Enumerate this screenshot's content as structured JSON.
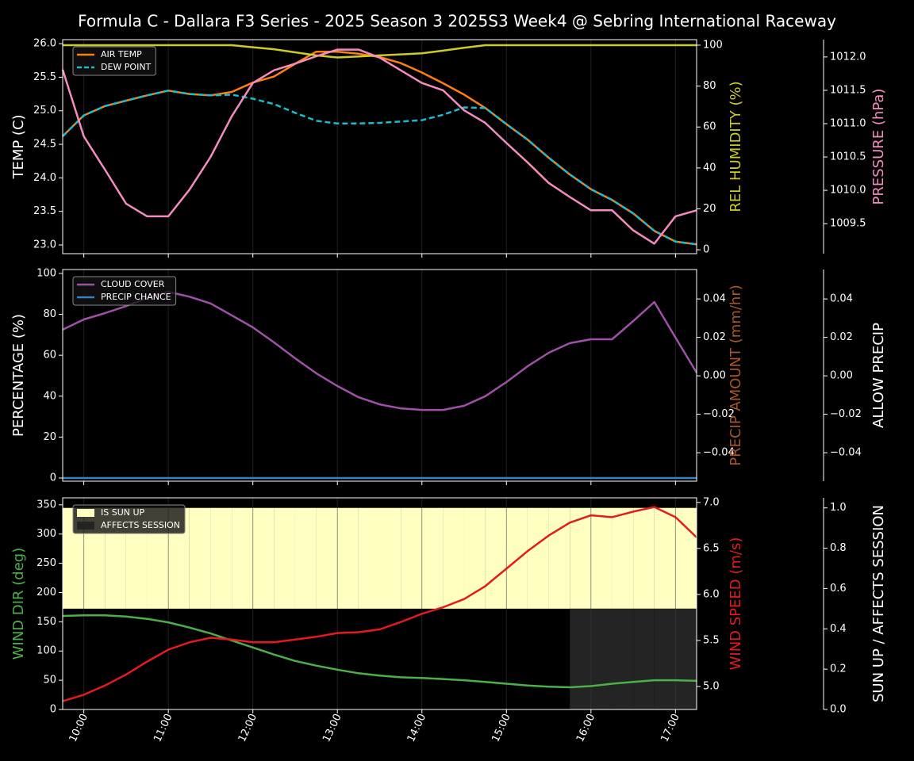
{
  "title": "Formula C -  Dallara F3 Series - 2025 Season 3 2025S3 Week4 @ Sebring International Raceway",
  "chart_data": [
    {
      "type": "line",
      "ylabel": "TEMP (C)",
      "y2label": "REL HUMIDITY (%)",
      "y2label_color": "#cccc22",
      "y3label": "PRESSURE (hPa)",
      "y3label_color": "#f48cc0",
      "ylim": [
        22.87,
        26.06
      ],
      "yticks": [
        {
          "value": 23,
          "label": "23.0"
        },
        23.5,
        {
          "value": 24,
          "label": "24.0"
        },
        24.5,
        {
          "value": 25,
          "label": "25.0"
        },
        25.5,
        {
          "value": 26,
          "label": "26.0"
        }
      ],
      "y2lim": [
        -1.9,
        102.7
      ],
      "y2ticks": [
        0,
        20,
        40,
        60,
        80,
        100
      ],
      "y3lim": [
        1009.05,
        1012.26
      ],
      "y3ticks": [
        1009.5,
        {
          "value": 1010,
          "label": "1010.0"
        },
        1010.5,
        {
          "value": 1011,
          "label": "1011.0"
        },
        1011.5,
        {
          "value": 1012,
          "label": "1012.0"
        }
      ],
      "legend": true,
      "series": [
        {
          "name": "AIR TEMP",
          "color": "#ff7f0e",
          "axis": "y",
          "values": [
            24.62,
            24.93,
            25.07,
            25.15,
            25.23,
            25.3,
            25.25,
            25.23,
            25.28,
            25.42,
            25.51,
            25.7,
            25.88,
            25.88,
            25.85,
            25.8,
            25.71,
            25.57,
            25.41,
            25.24,
            25.04,
            24.8,
            24.57,
            24.3,
            24.05,
            23.83,
            23.67,
            23.47,
            23.21,
            23.05,
            23.01
          ]
        },
        {
          "name": "DEW POINT",
          "color": "#17becf",
          "axis": "y",
          "dash": true,
          "values": [
            24.62,
            24.93,
            25.07,
            25.15,
            25.23,
            25.3,
            25.25,
            25.23,
            25.24,
            25.18,
            25.1,
            24.97,
            24.85,
            24.81,
            24.81,
            24.82,
            24.84,
            24.86,
            24.94,
            25.05,
            25.04,
            24.8,
            24.57,
            24.3,
            24.05,
            23.83,
            23.67,
            23.47,
            23.21,
            23.05,
            23.01
          ]
        },
        {
          "color": "#cccc22",
          "axis": "y2",
          "in_legend": false,
          "values": [
            100,
            100,
            100,
            100,
            100,
            100,
            100,
            100,
            100,
            99,
            98,
            96.5,
            95,
            94,
            94.5,
            95,
            95.5,
            96,
            97.3,
            98.7,
            100,
            100,
            100,
            100,
            100,
            100,
            100,
            100,
            100,
            100,
            100
          ]
        },
        {
          "color": "#f48cc0",
          "axis": "y3",
          "in_legend": false,
          "values": [
            1011.81,
            1010.81,
            1010.31,
            1009.8,
            1009.61,
            1009.61,
            1010.01,
            1010.5,
            1011.11,
            1011.61,
            1011.8,
            1011.9,
            1012.01,
            1012.11,
            1012.11,
            1011.99,
            1011.8,
            1011.61,
            1011.5,
            1011.2,
            1011.01,
            1010.71,
            1010.42,
            1010.11,
            1009.9,
            1009.7,
            1009.7,
            1009.4,
            1009.2,
            1009.61,
            1009.7
          ]
        }
      ]
    },
    {
      "type": "line",
      "ylabel": "PERCENTAGE (%)",
      "y2label": "PRECIP AMOUNT (mm/hr)",
      "y2label_color": "#a65628",
      "y3label": "ALLOW PRECIP",
      "y3label_color": "#ffffff",
      "ylim": [
        -1.55,
        101.9
      ],
      "yticks": [
        0,
        20,
        40,
        60,
        80,
        100
      ],
      "y2lim": [
        -0.0548,
        0.0553
      ],
      "y2ticks": [
        {
          "value": -0.04,
          "label": "−0.04"
        },
        {
          "value": -0.02,
          "label": "−0.02"
        },
        {
          "value": 0,
          "label": "0.00"
        },
        0.02,
        0.04
      ],
      "y3lim": [
        -0.0548,
        0.0553
      ],
      "y3ticks": [
        {
          "value": -0.04,
          "label": "−0.04"
        },
        {
          "value": -0.02,
          "label": "−0.02"
        },
        {
          "value": 0,
          "label": "0.00"
        },
        0.02,
        0.04
      ],
      "legend": true,
      "series": [
        {
          "name": "CLOUD COVER",
          "color": "#a050a8",
          "axis": "y",
          "values": [
            72.5,
            77.5,
            80.6,
            84,
            88,
            91,
            88.6,
            85.3,
            79.5,
            73.6,
            66.3,
            58.5,
            51.2,
            45,
            39.5,
            36,
            34,
            33.3,
            33.3,
            35.3,
            40,
            46.9,
            54.6,
            61.2,
            65.9,
            67.8,
            67.8,
            76.7,
            86,
            68.6,
            51.5
          ]
        },
        {
          "name": "PRECIP CHANCE",
          "color": "#3a80c0",
          "axis": "y",
          "values": [
            0,
            0,
            0,
            0,
            0,
            0,
            0,
            0,
            0,
            0,
            0,
            0,
            0,
            0,
            0,
            0,
            0,
            0,
            0,
            0,
            0,
            0,
            0,
            0,
            0,
            0,
            0,
            0,
            0,
            0,
            0
          ]
        }
      ]
    },
    {
      "type": "line",
      "ylabel": "WIND DIR (deg)",
      "ylabel_color": "#4daf4a",
      "y2label": "WIND SPEED (m/s)",
      "y2label_color": "#e41a1c",
      "y3label": "SUN UP / AFFECTS SESSION",
      "y3label_color": "#ffffff",
      "xlim": [
        9.75,
        17.25
      ],
      "xticks": [
        {
          "value": 10,
          "label": "10:00"
        },
        {
          "value": 11,
          "label": "11:00"
        },
        {
          "value": 12,
          "label": "12:00"
        },
        {
          "value": 13,
          "label": "13:00"
        },
        {
          "value": 14,
          "label": "14:00"
        },
        {
          "value": 15,
          "label": "15:00"
        },
        {
          "value": 16,
          "label": "16:00"
        },
        {
          "value": 17,
          "label": "17:00"
        }
      ],
      "x": [
        9.75,
        10,
        10.25,
        10.5,
        10.75,
        11,
        11.25,
        11.5,
        11.75,
        12,
        12.25,
        12.5,
        12.75,
        13,
        13.25,
        13.5,
        13.75,
        14,
        14.25,
        14.5,
        14.75,
        15,
        15.25,
        15.5,
        15.75,
        16,
        16.25,
        16.5,
        16.75,
        17,
        17.25
      ],
      "ylim": [
        0,
        362
      ],
      "yticks": [
        0,
        50,
        100,
        150,
        200,
        250,
        300,
        350
      ],
      "y2lim": [
        4.75,
        7.05
      ],
      "y2ticks": [
        {
          "value": 5,
          "label": "5.0"
        },
        5.5,
        {
          "value": 6,
          "label": "6.0"
        },
        6.5,
        {
          "value": 7,
          "label": "7.0"
        }
      ],
      "y3lim": [
        0,
        1.05
      ],
      "y3ticks": [
        {
          "value": 0,
          "label": "0.0"
        },
        0.2,
        0.4,
        0.6,
        0.8,
        {
          "value": 1,
          "label": "1.0"
        }
      ],
      "legend": true,
      "series": [
        {
          "name": "IS SUN UP",
          "type": "fill",
          "color": "#ffffc2",
          "axis": "y3",
          "values": [
            1,
            1,
            1,
            1,
            1,
            1,
            1,
            1,
            1,
            1,
            1,
            1,
            1,
            1,
            1,
            1,
            1,
            1,
            1,
            1,
            1,
            1,
            1,
            1,
            1,
            1,
            1,
            1,
            1,
            1,
            1
          ]
        },
        {
          "name": "AFFECTS SESSION",
          "type": "fill",
          "color": "#242424",
          "axis": "y3",
          "values": [
            0,
            0,
            0,
            0,
            0,
            0,
            0,
            0,
            0,
            0,
            0,
            0,
            0,
            0,
            0,
            0,
            0,
            0,
            0,
            0,
            0,
            0,
            0,
            0,
            0.5,
            0.5,
            0.5,
            0.5,
            0.5,
            0.5,
            0.5
          ]
        },
        {
          "color": "#4daf4a",
          "axis": "y",
          "in_legend": false,
          "values": [
            160,
            161,
            161,
            159,
            155,
            149,
            140,
            130,
            118,
            106,
            94,
            83,
            75,
            68,
            62,
            58,
            55,
            54,
            52,
            50,
            47,
            44,
            41,
            39,
            38,
            40,
            44,
            47,
            50,
            50,
            49
          ]
        },
        {
          "color": "#e41a1c",
          "axis": "y2",
          "in_legend": false,
          "values": [
            4.84,
            4.91,
            5.01,
            5.13,
            5.27,
            5.4,
            5.48,
            5.53,
            5.51,
            5.48,
            5.48,
            5.51,
            5.54,
            5.58,
            5.59,
            5.62,
            5.7,
            5.79,
            5.86,
            5.95,
            6.09,
            6.28,
            6.47,
            6.64,
            6.78,
            6.86,
            6.84,
            6.9,
            6.95,
            6.84,
            6.62
          ]
        }
      ]
    }
  ]
}
